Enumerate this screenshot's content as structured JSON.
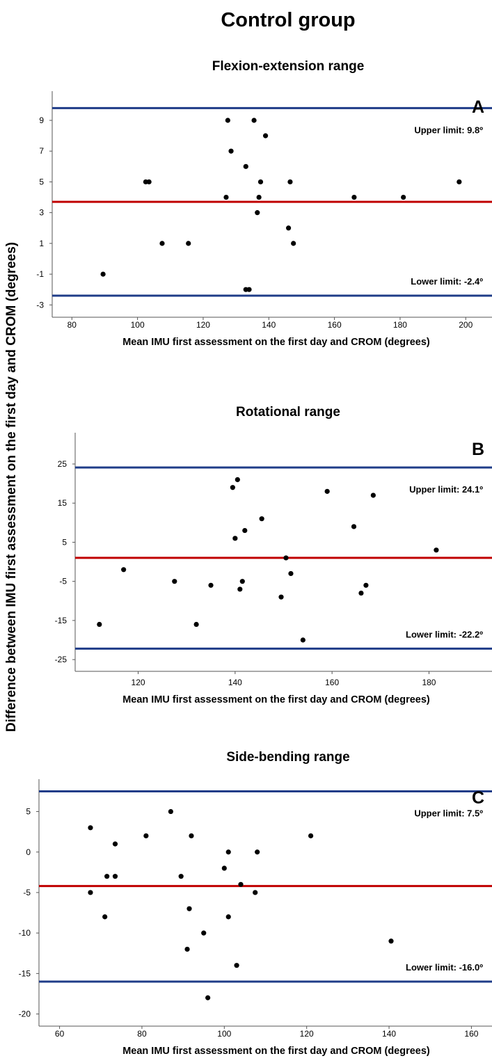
{
  "figure": {
    "title": "Control group",
    "ylabel": "Difference between IMU first assessment on the first day and CROM (degrees)"
  },
  "colors": {
    "limit_line": "#1f3c88",
    "mean_line": "#c00000",
    "point": "#000000",
    "axis": "#555555"
  },
  "chart_data": [
    {
      "type": "scatter",
      "panel": "A",
      "title": "Flexion-extension range",
      "xlabel": "Mean IMU first assessment on the first day and CROM (degrees)",
      "ylabel": "Difference between IMU first assessment on the first day and CROM (degrees)",
      "xlim": [
        74,
        208
      ],
      "ylim": [
        -3.8,
        10.9
      ],
      "xticks": [
        80,
        100,
        120,
        140,
        160,
        180,
        200
      ],
      "yticks": [
        9,
        7,
        5,
        3,
        1,
        -1,
        -3
      ],
      "mean_line": 3.7,
      "upper_limit": 9.8,
      "lower_limit": -2.4,
      "upper_label": "Upper limit: 9.8º",
      "lower_label": "Lower limit: -2.4º",
      "grid": false,
      "points": [
        {
          "x": 89.5,
          "y": -1
        },
        {
          "x": 102.5,
          "y": 5
        },
        {
          "x": 103.5,
          "y": 5
        },
        {
          "x": 107.5,
          "y": 1
        },
        {
          "x": 115.5,
          "y": 1
        },
        {
          "x": 127,
          "y": 4
        },
        {
          "x": 127.5,
          "y": 9
        },
        {
          "x": 128.5,
          "y": 7
        },
        {
          "x": 133,
          "y": 6
        },
        {
          "x": 133,
          "y": -2
        },
        {
          "x": 134,
          "y": -2
        },
        {
          "x": 135.5,
          "y": 9
        },
        {
          "x": 136.5,
          "y": 3
        },
        {
          "x": 137,
          "y": 4
        },
        {
          "x": 137.5,
          "y": 5
        },
        {
          "x": 139,
          "y": 8
        },
        {
          "x": 146,
          "y": 2
        },
        {
          "x": 146.5,
          "y": 5
        },
        {
          "x": 147.5,
          "y": 1
        },
        {
          "x": 166,
          "y": 4
        },
        {
          "x": 181,
          "y": 4
        },
        {
          "x": 198,
          "y": 5
        }
      ]
    },
    {
      "type": "scatter",
      "panel": "B",
      "title": "Rotational range",
      "xlabel": "Mean IMU first assessment on the first day and CROM (degrees)",
      "ylabel": "Difference between IMU first assessment on the first day and CROM (degrees)",
      "xlim": [
        107,
        193
      ],
      "ylim": [
        -28,
        33
      ],
      "xticks": [
        120,
        140,
        160,
        180
      ],
      "yticks": [
        25,
        15,
        5,
        -5,
        -15,
        -25
      ],
      "mean_line": 1.0,
      "upper_limit": 24.1,
      "lower_limit": -22.2,
      "upper_label": "Upper limit: 24.1º",
      "lower_label": "Lower limit: -22.2º",
      "grid": false,
      "points": [
        {
          "x": 112,
          "y": -16
        },
        {
          "x": 117,
          "y": -2
        },
        {
          "x": 127.5,
          "y": -5
        },
        {
          "x": 132,
          "y": -16
        },
        {
          "x": 135,
          "y": -6
        },
        {
          "x": 139.5,
          "y": 19
        },
        {
          "x": 140,
          "y": 6
        },
        {
          "x": 140.5,
          "y": 21
        },
        {
          "x": 141,
          "y": -7
        },
        {
          "x": 141.5,
          "y": -5
        },
        {
          "x": 142,
          "y": 8
        },
        {
          "x": 145.5,
          "y": 11
        },
        {
          "x": 149.5,
          "y": -9
        },
        {
          "x": 150.5,
          "y": 1
        },
        {
          "x": 151.5,
          "y": -3
        },
        {
          "x": 154,
          "y": -20
        },
        {
          "x": 159,
          "y": 18
        },
        {
          "x": 164.5,
          "y": 9
        },
        {
          "x": 166,
          "y": -8
        },
        {
          "x": 167,
          "y": -6
        },
        {
          "x": 168.5,
          "y": 17
        },
        {
          "x": 181.5,
          "y": 3
        }
      ]
    },
    {
      "type": "scatter",
      "panel": "C",
      "title": "Side-bending range",
      "xlabel": "Mean IMU first assessment on the first day and CROM (degrees)",
      "ylabel": "Difference between IMU first assessment on the first day and CROM (degrees)",
      "xlim": [
        55,
        165
      ],
      "ylim": [
        -21.5,
        9
      ],
      "xticks": [
        60,
        80,
        100,
        120,
        140,
        160
      ],
      "yticks": [
        5,
        0,
        -5,
        -10,
        -15,
        -20
      ],
      "mean_line": -4.2,
      "upper_limit": 7.5,
      "lower_limit": -16.0,
      "upper_label": "Upper limit: 7.5º",
      "lower_label": "Lower limit: -16.0º",
      "grid": false,
      "points": [
        {
          "x": 67.5,
          "y": 3
        },
        {
          "x": 67.5,
          "y": -5
        },
        {
          "x": 71,
          "y": -8
        },
        {
          "x": 71.5,
          "y": -3
        },
        {
          "x": 73.5,
          "y": 1
        },
        {
          "x": 73.5,
          "y": -3
        },
        {
          "x": 81,
          "y": 2
        },
        {
          "x": 87,
          "y": 5
        },
        {
          "x": 89.5,
          "y": -3
        },
        {
          "x": 91,
          "y": -12
        },
        {
          "x": 91.5,
          "y": -7
        },
        {
          "x": 92,
          "y": 2
        },
        {
          "x": 95,
          "y": -10
        },
        {
          "x": 96,
          "y": -18
        },
        {
          "x": 100,
          "y": -2
        },
        {
          "x": 101,
          "y": 0
        },
        {
          "x": 101,
          "y": -8
        },
        {
          "x": 103,
          "y": -14
        },
        {
          "x": 104,
          "y": -4
        },
        {
          "x": 107.5,
          "y": -5
        },
        {
          "x": 108,
          "y": 0
        },
        {
          "x": 121,
          "y": 2
        },
        {
          "x": 140.5,
          "y": -11
        }
      ]
    }
  ]
}
